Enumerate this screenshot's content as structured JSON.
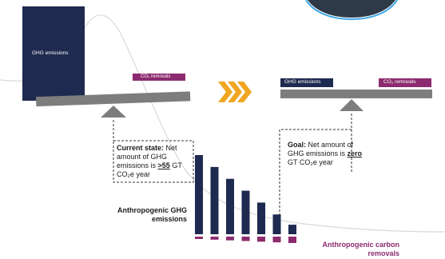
{
  "left_panel": {
    "ghg_block_label": "GHG emissions",
    "co2_removals_label": "CO₂ removals",
    "current_state": {
      "heading": "Current state:",
      "text_1": "Net amount of GHG emissions is",
      "value": ">55",
      "text_2": "GT CO₂e year"
    }
  },
  "right_panel": {
    "ghg_label": "GHG emissions",
    "co2_removals_label": "CO₂ removals",
    "goal": {
      "heading": "Goal:",
      "text_1": "Net amount of GHG emissions is",
      "value": "zero",
      "text_2": "GT CO₂e year"
    }
  },
  "bars_section": {
    "emissions_label": "Anthropogenic GHG emissions",
    "removals_label": "Anthropogenic carbon removals",
    "emission_levels": [
      1.0,
      0.85,
      0.7,
      0.55,
      0.4,
      0.25,
      0.12
    ],
    "removal_level": 1.0
  },
  "colors": {
    "navy": "#1e2a4f",
    "magenta": "#8c2b6f",
    "grey_beam": "#7d7d7d",
    "arrow_orange": "#f0a623"
  }
}
